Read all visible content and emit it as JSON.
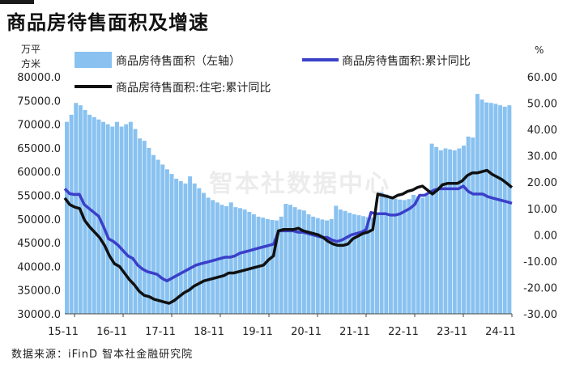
{
  "title": "商品房待售面积及增速",
  "source": "数据来源：iFinD 智本社金融研究院",
  "watermark": "智本社数据中心",
  "chart_data": {
    "type": "bar+line",
    "title": "商品房待售面积及增速",
    "left_unit": [
      "万平",
      "方米"
    ],
    "right_unit": "%",
    "left_axis": {
      "ylim": [
        30000,
        80000
      ],
      "ticks": [
        "30000.0",
        "35000.0",
        "40000.0",
        "45000.0",
        "50000.0",
        "55000.0",
        "60000.0",
        "65000.0",
        "70000.0",
        "75000.0",
        "80000.0"
      ]
    },
    "right_axis": {
      "ylim": [
        -30,
        60
      ],
      "ticks": [
        "-30.00",
        "-20.00",
        "-10.00",
        "0.00",
        "10.00",
        "20.00",
        "30.00",
        "40.00",
        "50.00",
        "60.00"
      ]
    },
    "x_tick_labels": [
      "15-11",
      "16-11",
      "17-11",
      "18-11",
      "19-11",
      "20-11",
      "21-11",
      "22-11",
      "23-11",
      "24-11"
    ],
    "legend": [
      {
        "name": "商品房待售面积（左轴）",
        "kind": "bar",
        "color": "#89c2f0"
      },
      {
        "name": "商品房待售面积:累计同比",
        "kind": "line",
        "color": "#3b3fc9"
      },
      {
        "name": "商品房待售面积:住宅:累计同比",
        "kind": "line",
        "color": "#111111"
      }
    ],
    "series": [
      {
        "name": "商品房待售面积（左轴）",
        "axis": "left",
        "type": "bar",
        "values": [
          70500,
          72000,
          74500,
          74000,
          73000,
          72000,
          71500,
          71000,
          70500,
          70000,
          69500,
          70500,
          69500,
          70000,
          70500,
          69000,
          67000,
          66500,
          65000,
          63500,
          62500,
          61500,
          60500,
          59500,
          58500,
          58000,
          57500,
          59000,
          57500,
          56500,
          55500,
          54500,
          54000,
          53500,
          53000,
          52700,
          53500,
          52500,
          52300,
          52000,
          51500,
          51000,
          50500,
          50300,
          50000,
          49800,
          49700,
          50500,
          53200,
          53000,
          52500,
          52000,
          51800,
          51000,
          50500,
          50200,
          49900,
          49700,
          50000,
          52800,
          52000,
          51700,
          51300,
          51000,
          50800,
          50600,
          50400,
          50300,
          51000,
          55600,
          55200,
          54800,
          54300,
          54100,
          54000,
          54200,
          55100,
          54800,
          54500,
          55000,
          65900,
          65200,
          64500,
          64900,
          64700,
          64500,
          64900,
          65500,
          67400,
          67200,
          76400,
          75200,
          74600,
          74500,
          74300,
          74000,
          73700,
          74000
        ]
      },
      {
        "name": "商品房待售面积:累计同比",
        "axis": "right",
        "type": "line",
        "values": [
          17.5,
          15.6,
          15.3,
          15.4,
          11.5,
          10.0,
          8.5,
          7.0,
          3.0,
          -1.5,
          -2.5,
          -4.0,
          -6.0,
          -8.0,
          -9.0,
          -11.5,
          -13.0,
          -14.0,
          -14.5,
          -15.0,
          -16.5,
          -17.5,
          -16.5,
          -15.5,
          -14.5,
          -13.5,
          -12.5,
          -11.5,
          -11.0,
          -10.5,
          -10.0,
          -9.5,
          -9.0,
          -8.5,
          -8.5,
          -8.0,
          -7.0,
          -6.5,
          -6.0,
          -5.5,
          -5.0,
          -4.5,
          -4.0,
          -3.5,
          1.5,
          1.5,
          1.5,
          1.5,
          1.0,
          1.0,
          0.5,
          0.0,
          -0.5,
          -1.0,
          -1.0,
          -2.0,
          -2.5,
          -2.0,
          -1.0,
          0.0,
          0.5,
          1.0,
          2.0,
          8.5,
          8.0,
          8.0,
          8.0,
          7.5,
          7.5,
          8.0,
          9.0,
          10.0,
          11.5,
          15.0,
          15.0,
          16.0,
          17.0,
          17.5,
          17.5,
          17.5,
          17.5,
          17.5,
          18.5,
          16.5,
          15.5,
          15.5,
          15.5,
          14.5,
          14.0,
          13.5,
          13.0,
          12.5,
          12.0
        ]
      },
      {
        "name": "商品房待售面积:住宅:累计同比",
        "axis": "right",
        "type": "line",
        "values": [
          14.0,
          11.5,
          10.5,
          10.0,
          5.5,
          3.0,
          1.0,
          -1.0,
          -4.0,
          -8.0,
          -11.0,
          -12.0,
          -14.5,
          -17.0,
          -19.0,
          -21.5,
          -23.0,
          -23.5,
          -24.5,
          -25.0,
          -25.5,
          -26.0,
          -25.0,
          -23.5,
          -22.0,
          -21.0,
          -19.5,
          -18.5,
          -17.5,
          -17.0,
          -16.5,
          -16.0,
          -15.5,
          -14.5,
          -14.5,
          -14.0,
          -13.5,
          -13.0,
          -12.5,
          -12.0,
          -11.5,
          -9.5,
          -8.0,
          1.5,
          2.0,
          2.0,
          2.0,
          2.5,
          1.5,
          1.0,
          0.5,
          0.0,
          -1.0,
          -2.5,
          -3.5,
          -4.0,
          -4.0,
          -3.5,
          -1.5,
          -0.5,
          0.5,
          1.0,
          2.0,
          15.5,
          15.0,
          14.5,
          14.0,
          15.0,
          15.5,
          16.5,
          17.0,
          18.0,
          18.5,
          17.0,
          15.5,
          17.0,
          19.0,
          19.5,
          19.5,
          19.5,
          20.5,
          22.5,
          23.5,
          23.5,
          24.0,
          24.5,
          23.0,
          22.0,
          21.0,
          19.5,
          18.0
        ]
      }
    ]
  }
}
